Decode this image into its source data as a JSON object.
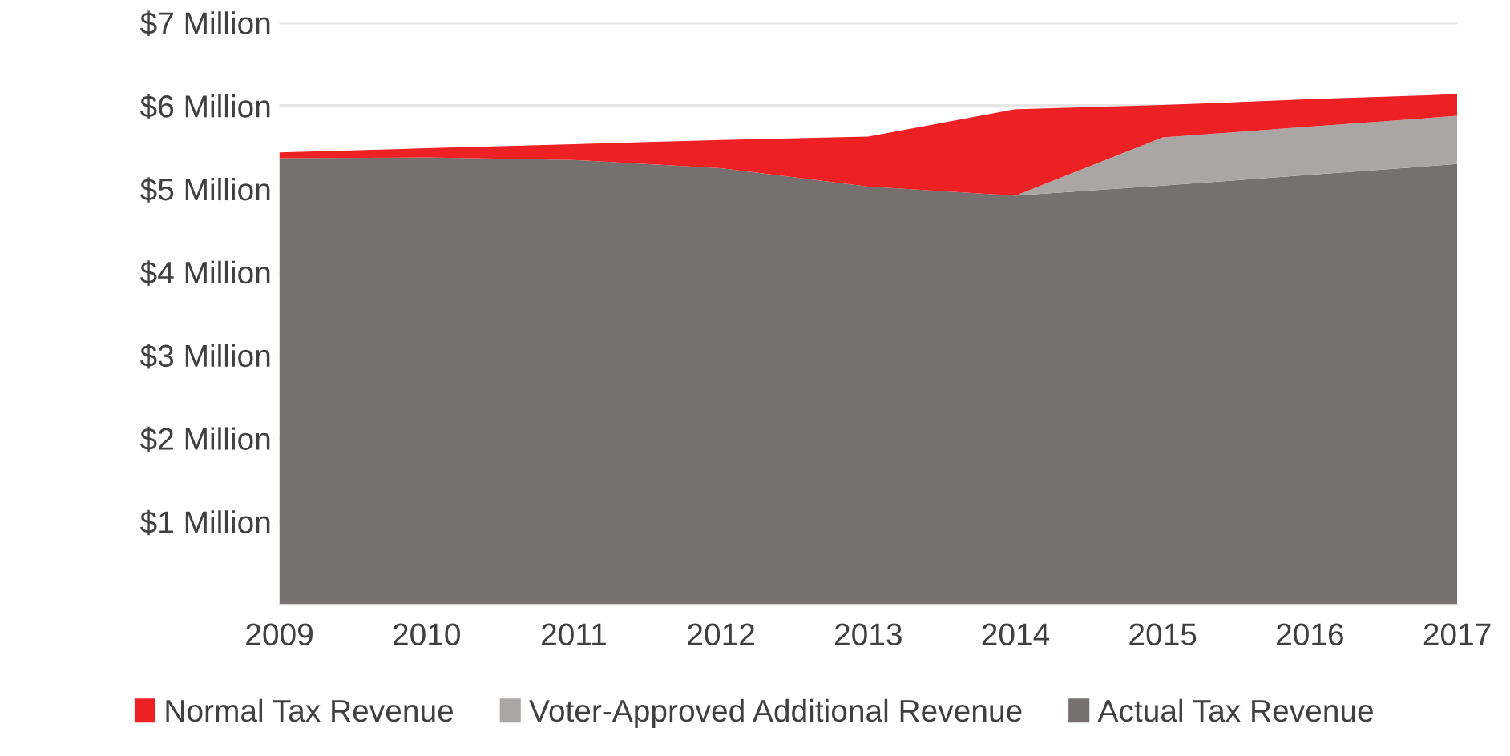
{
  "chart_data": {
    "type": "area",
    "stacked": true,
    "x": [
      2009,
      2010,
      2011,
      2012,
      2013,
      2014,
      2015,
      2016,
      2017
    ],
    "series": [
      {
        "name": "Actual Tax Revenue",
        "color": "#767070",
        "values": [
          5.37,
          5.38,
          5.35,
          5.25,
          5.03,
          4.92,
          5.04,
          5.17,
          5.3
        ]
      },
      {
        "name": "Voter-Approved Additional Revenue",
        "color": "#aaa6a6",
        "values": [
          0,
          0,
          0,
          0,
          0,
          0,
          0.58,
          0.58,
          0.58
        ]
      },
      {
        "name": "Normal Tax Revenue",
        "color": "#ed2024",
        "values": [
          0.07,
          0.11,
          0.19,
          0.34,
          0.6,
          1.04,
          0.39,
          0.33,
          0.26
        ]
      }
    ],
    "xlim": [
      2009,
      2017
    ],
    "xticks": [
      2009,
      2010,
      2011,
      2012,
      2013,
      2014,
      2015,
      2016,
      2017
    ],
    "ylim": [
      0,
      7
    ],
    "yticks": [
      {
        "value": 1,
        "label": "$1 Million"
      },
      {
        "value": 2,
        "label": "$2 Million"
      },
      {
        "value": 3,
        "label": "$3 Million"
      },
      {
        "value": 4,
        "label": "$4 Million"
      },
      {
        "value": 5,
        "label": "$5 Million"
      },
      {
        "value": 6,
        "label": "$6 Million"
      },
      {
        "value": 7,
        "label": "$7 Million"
      }
    ],
    "grid": "y",
    "legend": "bottom"
  }
}
